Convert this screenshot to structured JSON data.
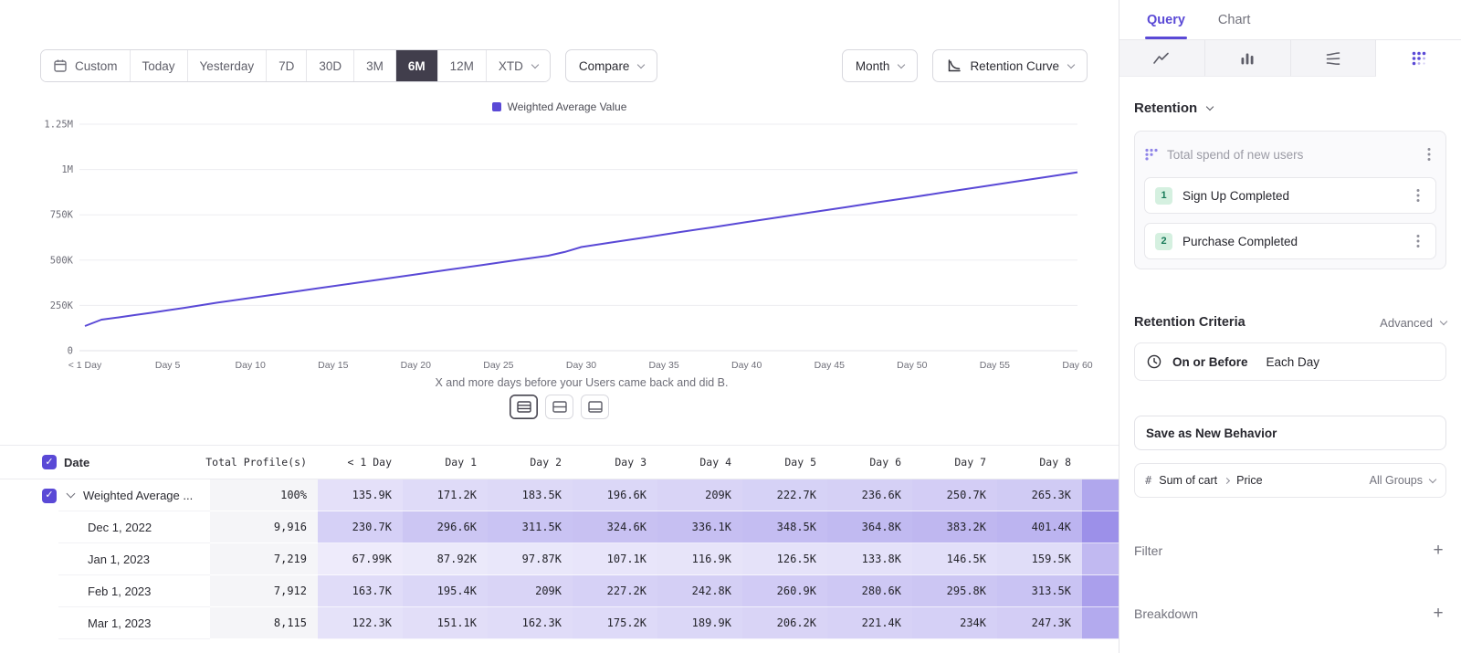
{
  "toolbar": {
    "custom_label": "Custom",
    "ranges": [
      "Today",
      "Yesterday",
      "7D",
      "30D",
      "3M",
      "6M",
      "12M"
    ],
    "selected_range": "6M",
    "xtd_label": "XTD",
    "compare_label": "Compare",
    "granularity_label": "Month",
    "view_label": "Retention Curve"
  },
  "chart_data": {
    "type": "line",
    "legend_position": "top-center",
    "grid": "horizontal",
    "xlabel": "X and more days before your Users came back and did B.",
    "x_max": 60,
    "y_max": 1250000,
    "x_ticks": {
      "days": [
        0,
        5,
        10,
        15,
        20,
        25,
        30,
        35,
        40,
        45,
        50,
        55,
        60
      ],
      "labels": [
        "< 1 Day",
        "Day 5",
        "Day 10",
        "Day 15",
        "Day 20",
        "Day 25",
        "Day 30",
        "Day 35",
        "Day 40",
        "Day 45",
        "Day 50",
        "Day 55",
        "Day 60"
      ]
    },
    "y_ticks": {
      "values": [
        0,
        250000,
        500000,
        750000,
        1000000,
        1250000
      ],
      "labels": [
        "0",
        "250K",
        "500K",
        "750K",
        "1M",
        "1.25M"
      ]
    },
    "series": [
      {
        "name": "Weighted Average Value",
        "color": "#5a49d6",
        "points": [
          [
            0,
            135900
          ],
          [
            1,
            171200
          ],
          [
            2,
            183500
          ],
          [
            3,
            196600
          ],
          [
            4,
            209000
          ],
          [
            5,
            222700
          ],
          [
            6,
            236600
          ],
          [
            7,
            250700
          ],
          [
            8,
            265300
          ],
          [
            10,
            291000
          ],
          [
            12,
            317000
          ],
          [
            14,
            343000
          ],
          [
            16,
            369000
          ],
          [
            18,
            395000
          ],
          [
            20,
            421000
          ],
          [
            22,
            447000
          ],
          [
            24,
            473000
          ],
          [
            26,
            499000
          ],
          [
            28,
            524000
          ],
          [
            29,
            545000
          ],
          [
            30,
            572000
          ],
          [
            32,
            600000
          ],
          [
            34,
            627000
          ],
          [
            36,
            655000
          ],
          [
            38,
            682000
          ],
          [
            40,
            710000
          ],
          [
            42,
            737000
          ],
          [
            44,
            765000
          ],
          [
            46,
            792000
          ],
          [
            48,
            820000
          ],
          [
            50,
            847000
          ],
          [
            52,
            875000
          ],
          [
            54,
            902000
          ],
          [
            56,
            930000
          ],
          [
            58,
            957000
          ],
          [
            60,
            985000
          ]
        ]
      }
    ]
  },
  "table": {
    "columns": [
      "Date",
      "Total Profile(s)",
      "< 1 Day",
      "Day 1",
      "Day 2",
      "Day 3",
      "Day 4",
      "Day 5",
      "Day 6",
      "Day 7",
      "Day 8"
    ],
    "rows": [
      {
        "label": "Weighted Average ...",
        "checked": true,
        "expandable": true,
        "total": "100%",
        "values": [
          "135.9K",
          "171.2K",
          "183.5K",
          "196.6K",
          "209K",
          "222.7K",
          "236.6K",
          "250.7K",
          "265.3K"
        ]
      },
      {
        "label": "Dec 1, 2022",
        "total": "9,916",
        "values": [
          "230.7K",
          "296.6K",
          "311.5K",
          "324.6K",
          "336.1K",
          "348.5K",
          "364.8K",
          "383.2K",
          "401.4K"
        ]
      },
      {
        "label": "Jan 1, 2023",
        "total": "7,219",
        "values": [
          "67.99K",
          "87.92K",
          "97.87K",
          "107.1K",
          "116.9K",
          "126.5K",
          "133.8K",
          "146.5K",
          "159.5K"
        ]
      },
      {
        "label": "Feb 1, 2023",
        "total": "7,912",
        "values": [
          "163.7K",
          "195.4K",
          "209K",
          "227.2K",
          "242.8K",
          "260.9K",
          "280.6K",
          "295.8K",
          "313.5K"
        ]
      },
      {
        "label": "Mar 1, 2023",
        "total": "8,115",
        "values": [
          "122.3K",
          "151.1K",
          "162.3K",
          "175.2K",
          "189.9K",
          "206.2K",
          "221.4K",
          "234K",
          "247.3K"
        ]
      }
    ]
  },
  "sidebar": {
    "tabs": {
      "query": "Query",
      "chart": "Chart",
      "active": "Query"
    },
    "view_switcher": {
      "icons": [
        "line-chart-icon",
        "bar-chart-icon",
        "flow-chart-icon",
        "retention-grid-icon"
      ],
      "active": "retention-grid-icon"
    },
    "section_title": "Retention",
    "behavior": {
      "title": "Total spend of new users",
      "steps": [
        {
          "num": "1",
          "label": "Sign Up Completed"
        },
        {
          "num": "2",
          "label": "Purchase Completed"
        }
      ]
    },
    "criteria": {
      "label": "Retention Criteria",
      "mode": "Advanced"
    },
    "timing": {
      "condition": "On or Before",
      "value": "Each Day"
    },
    "save_button_label": "Save as New Behavior",
    "measure": {
      "symbol": "#",
      "property": "Sum of cart",
      "subproperty": "Price",
      "groups": "All Groups"
    },
    "filter_label": "Filter",
    "breakdown_label": "Breakdown"
  },
  "colors": {
    "accent": "#5a49d6",
    "heatmap_rgb": "96,77,219",
    "selected_range_bg": "#413e4c",
    "badge_bg": "#d5f0e0",
    "badge_text": "#177a58"
  }
}
